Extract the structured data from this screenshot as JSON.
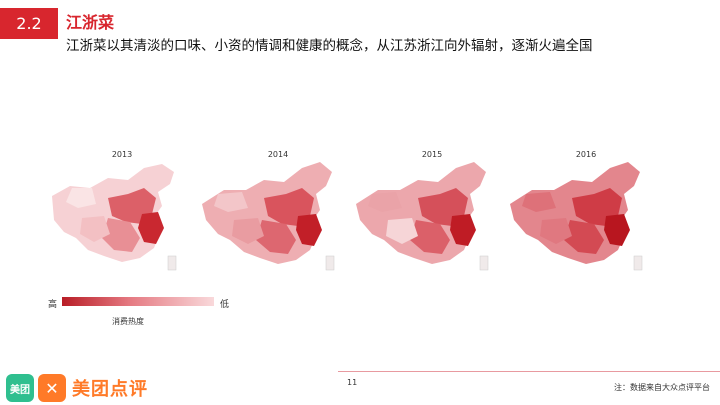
{
  "header": {
    "section_number": "2.2",
    "title": "江浙菜",
    "subtitle": "江浙菜以其清淡的口味、小资的情调和健康的概念，从江苏浙江向外辐射，逐渐火遍全国"
  },
  "maps": [
    {
      "year": "2013"
    },
    {
      "year": "2014"
    },
    {
      "year": "2015"
    },
    {
      "year": "2016"
    }
  ],
  "legend": {
    "high_label": "高",
    "low_label": "低",
    "caption": "消费热度",
    "colors": {
      "high": "#b81d26",
      "mid": "#e57a82",
      "low": "#f9d9db"
    }
  },
  "footer": {
    "page_number": "11",
    "source_note": "注：数据来自大众点评平台"
  },
  "logo": {
    "green_badge": "美团",
    "text": "美团点评"
  },
  "colors": {
    "accent": "#d8262e"
  }
}
